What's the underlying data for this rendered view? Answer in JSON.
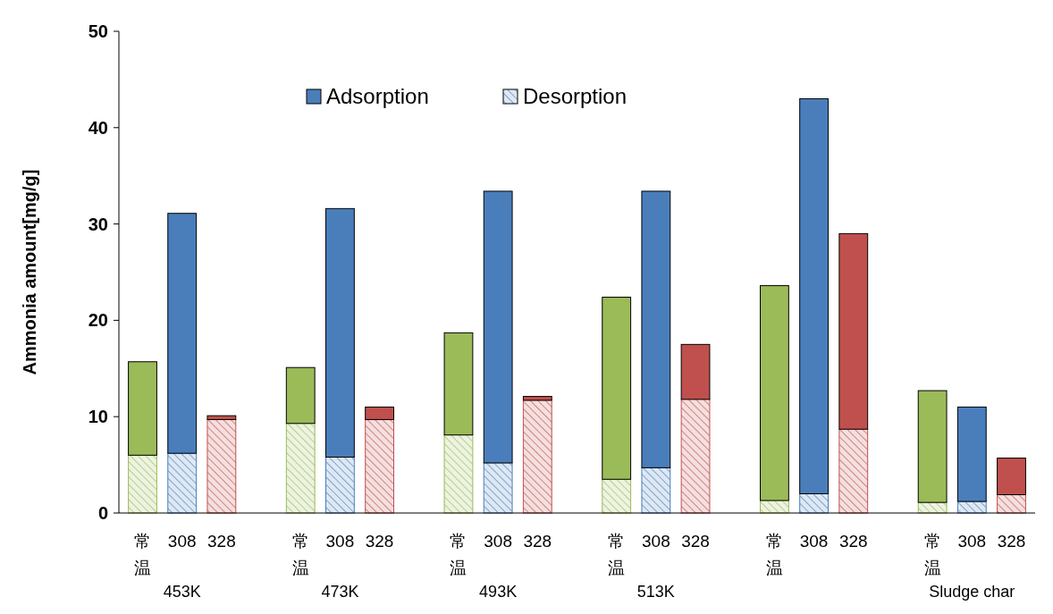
{
  "chart_data": {
    "type": "bar",
    "stacked": true,
    "ylabel": "Ammonia amount[mg/g]",
    "ylim": [
      0,
      50
    ],
    "yticks": [
      0,
      10,
      20,
      30,
      40,
      50
    ],
    "grid": false,
    "legend": "top",
    "categories": [
      "常温",
      "308",
      "328",
      "常温",
      "308",
      "328",
      "常温",
      "308",
      "328",
      "常温",
      "308",
      "328",
      "常温",
      "308",
      "328",
      "常温",
      "308",
      "328"
    ],
    "annotations": [
      "453K",
      "473K",
      "493K",
      "513K",
      null,
      "Sludge char"
    ],
    "series": [
      {
        "name": "Desorption",
        "color": "#4a7ebb",
        "colors": [
          "#9bbb59",
          "#4a7ebb",
          "#c0504d",
          "#9bbb59",
          "#4a7ebb",
          "#c0504d",
          "#9bbb59",
          "#4a7ebb",
          "#c0504d",
          "#9bbb59",
          "#4a7ebb",
          "#c0504d",
          "#9bbb59",
          "#4a7ebb",
          "#c0504d",
          "#9bbb59",
          "#4a7ebb",
          "#c0504d"
        ],
        "values": [
          6.0,
          6.2,
          9.7,
          9.3,
          5.8,
          9.7,
          8.1,
          5.2,
          11.7,
          3.5,
          4.7,
          11.8,
          1.3,
          2.0,
          8.7,
          1.1,
          1.2,
          1.9
        ]
      },
      {
        "name": "Adsorption",
        "color": "#4a7ebb",
        "colors": [
          "#9bbb59",
          "#4a7ebb",
          "#c0504d",
          "#9bbb59",
          "#4a7ebb",
          "#c0504d",
          "#9bbb59",
          "#4a7ebb",
          "#c0504d",
          "#9bbb59",
          "#4a7ebb",
          "#c0504d",
          "#9bbb59",
          "#4a7ebb",
          "#c0504d",
          "#9bbb59",
          "#4a7ebb",
          "#c0504d"
        ],
        "values": [
          9.7,
          24.9,
          0.4,
          5.8,
          25.8,
          1.3,
          10.6,
          28.2,
          0.4,
          18.9,
          28.7,
          5.7,
          22.3,
          41.0,
          20.3,
          11.6,
          9.8,
          3.8
        ]
      }
    ]
  }
}
